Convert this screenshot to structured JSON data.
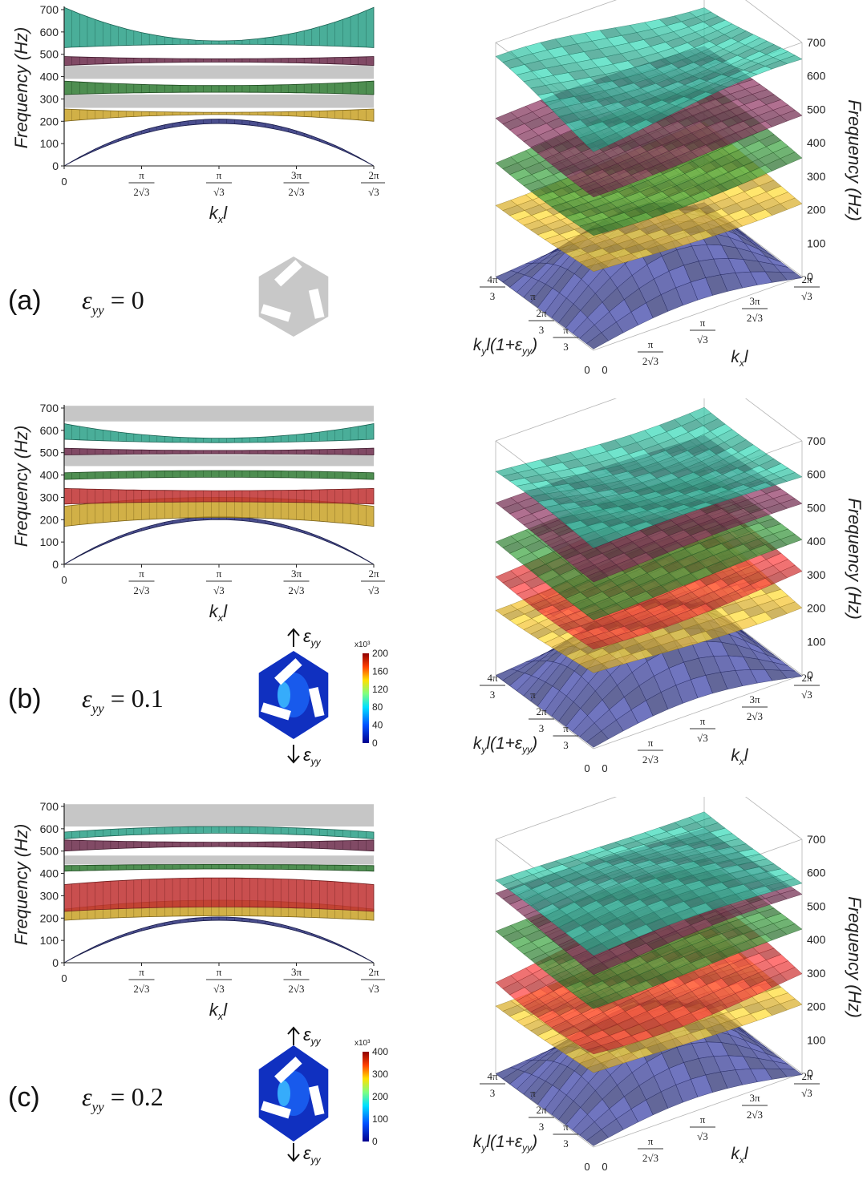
{
  "panels": [
    {
      "label": "(a)",
      "strain": "0",
      "color_scale": null
    },
    {
      "label": "(b)",
      "strain": "0.1",
      "color_scale": {
        "exponent": "x10³",
        "ticks": [
          "200",
          "160",
          "120",
          "80",
          "40",
          "0"
        ]
      }
    },
    {
      "label": "(c)",
      "strain": "0.2",
      "color_scale": {
        "exponent": "x10³",
        "ticks": [
          "400",
          "300",
          "200",
          "100",
          "0"
        ]
      }
    }
  ],
  "strain_symbol": "ε",
  "strain_sub": "yy",
  "chart_data": [
    {
      "type": "band-structure",
      "panel": "a",
      "ylabel": "Frequency (Hz)",
      "ylim": [
        0,
        700
      ],
      "yticks": [
        0,
        100,
        200,
        300,
        400,
        500,
        600,
        700
      ],
      "xlabel": "k_x l",
      "xticks": [
        "0",
        "π/(2√3)",
        "π/√3",
        "3π/(2√3)",
        "2π/√3"
      ],
      "band_gaps": [
        [
          260,
          320
        ],
        [
          390,
          450
        ]
      ],
      "bands": [
        {
          "name": "band-1",
          "color": "#2a2f7a",
          "lo": [
            0,
            190,
            0
          ],
          "hi": [
            0,
            210,
            0
          ]
        },
        {
          "name": "band-2",
          "color": "#c9a227",
          "lo": [
            200,
            230,
            200
          ],
          "hi": [
            255,
            240,
            255
          ]
        },
        {
          "name": "band-3",
          "color": "#2f7a32",
          "lo": [
            320,
            330,
            320
          ],
          "hi": [
            380,
            360,
            380
          ]
        },
        {
          "name": "band-4",
          "color": "#6b2a4a",
          "lo": [
            450,
            465,
            450
          ],
          "hi": [
            490,
            480,
            490
          ]
        },
        {
          "name": "band-5",
          "color": "#2aa087",
          "lo": [
            530,
            545,
            530
          ],
          "hi": [
            710,
            560,
            710
          ]
        }
      ]
    },
    {
      "type": "band-structure",
      "panel": "b",
      "ylabel": "Frequency (Hz)",
      "ylim": [
        0,
        700
      ],
      "yticks": [
        0,
        100,
        200,
        300,
        400,
        500,
        600,
        700
      ],
      "xlabel": "k_x l",
      "xticks": [
        "0",
        "π/(2√3)",
        "π/√3",
        "3π/(2√3)",
        "2π/√3"
      ],
      "band_gaps": [
        [
          440,
          490
        ],
        [
          640,
          710
        ]
      ],
      "bands": [
        {
          "name": "band-1",
          "color": "#2a2f7a",
          "lo": [
            0,
            200,
            0
          ],
          "hi": [
            0,
            215,
            0
          ]
        },
        {
          "name": "band-2",
          "color": "#c9a227",
          "lo": [
            170,
            210,
            170
          ],
          "hi": [
            260,
            300,
            260
          ]
        },
        {
          "name": "band-3",
          "color": "#c03030",
          "lo": [
            270,
            280,
            270
          ],
          "hi": [
            340,
            330,
            340
          ]
        },
        {
          "name": "band-4",
          "color": "#2f7a32",
          "lo": [
            380,
            390,
            380
          ],
          "hi": [
            410,
            420,
            410
          ]
        },
        {
          "name": "band-5",
          "color": "#6b2a4a",
          "lo": [
            490,
            495,
            490
          ],
          "hi": [
            520,
            510,
            520
          ]
        },
        {
          "name": "band-6",
          "color": "#2aa087",
          "lo": [
            560,
            545,
            560
          ],
          "hi": [
            630,
            565,
            630
          ]
        }
      ]
    },
    {
      "type": "band-structure",
      "panel": "c",
      "ylabel": "Frequency (Hz)",
      "ylim": [
        0,
        700
      ],
      "yticks": [
        0,
        100,
        200,
        300,
        400,
        500,
        600,
        700
      ],
      "xlabel": "k_x l",
      "xticks": [
        "0",
        "π/(2√3)",
        "π/√3",
        "3π/(2√3)",
        "2π/√3"
      ],
      "band_gaps": [
        [
          440,
          480
        ],
        [
          610,
          710
        ]
      ],
      "bands": [
        {
          "name": "band-1",
          "color": "#2a2f7a",
          "lo": [
            0,
            190,
            0
          ],
          "hi": [
            0,
            205,
            0
          ]
        },
        {
          "name": "band-2",
          "color": "#c9a227",
          "lo": [
            190,
            210,
            190
          ],
          "hi": [
            240,
            280,
            240
          ]
        },
        {
          "name": "band-3",
          "color": "#c03030",
          "lo": [
            230,
            250,
            230
          ],
          "hi": [
            350,
            380,
            350
          ]
        },
        {
          "name": "band-4",
          "color": "#2f7a32",
          "lo": [
            410,
            420,
            410
          ],
          "hi": [
            435,
            440,
            435
          ]
        },
        {
          "name": "band-5",
          "color": "#6b2a4a",
          "lo": [
            500,
            520,
            500
          ],
          "hi": [
            550,
            540,
            550
          ]
        },
        {
          "name": "band-6",
          "color": "#2aa087",
          "lo": [
            555,
            580,
            555
          ],
          "hi": [
            585,
            610,
            585
          ]
        }
      ]
    }
  ],
  "surface_plot": {
    "zlabel": "Frequency (Hz)",
    "zticks": [
      "0",
      "100",
      "200",
      "300",
      "400",
      "500",
      "600",
      "700"
    ],
    "xlabel": "k_x l",
    "ylabel": "k_y l(1+ε_yy)",
    "xticks": [
      "0",
      "π/(2√3)",
      "π/√3",
      "3π/(2√3)",
      "2π/√3"
    ],
    "yticks": [
      "0",
      "π/3",
      "2π/3",
      "π",
      "4π/3"
    ]
  }
}
